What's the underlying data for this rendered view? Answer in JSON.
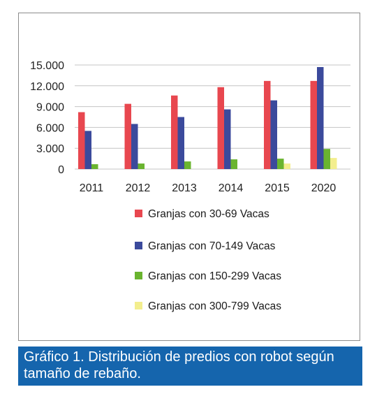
{
  "chart_data": {
    "type": "bar",
    "categories": [
      "2011",
      "2012",
      "2013",
      "2014",
      "2015",
      "2020"
    ],
    "series": [
      {
        "name": "Granjas con 30-69 Vacas",
        "color": "#e8474f",
        "values": [
          8200,
          9400,
          10600,
          11800,
          12700,
          12700
        ]
      },
      {
        "name": "Granjas con 70-149 Vacas",
        "color": "#3b4a9c",
        "values": [
          5500,
          6500,
          7500,
          8600,
          9900,
          14700
        ]
      },
      {
        "name": "Granjas con 150-299 Vacas",
        "color": "#6ab42f",
        "values": [
          700,
          800,
          1100,
          1400,
          1500,
          2900
        ]
      },
      {
        "name": "Granjas con 300-799 Vacas",
        "color": "#f3ee8e",
        "values": [
          0,
          0,
          0,
          0,
          800,
          1600
        ]
      }
    ],
    "yticks": [
      "0",
      "3.000",
      "6.000",
      "9.000",
      "12.000",
      "15.000"
    ],
    "ylim": [
      0,
      15000
    ],
    "grid": true,
    "legend_position": "bottom"
  },
  "caption": {
    "line1": "Gráfico 1. Distribución de predios con robot según",
    "line2": "tamaño de rebaño."
  }
}
